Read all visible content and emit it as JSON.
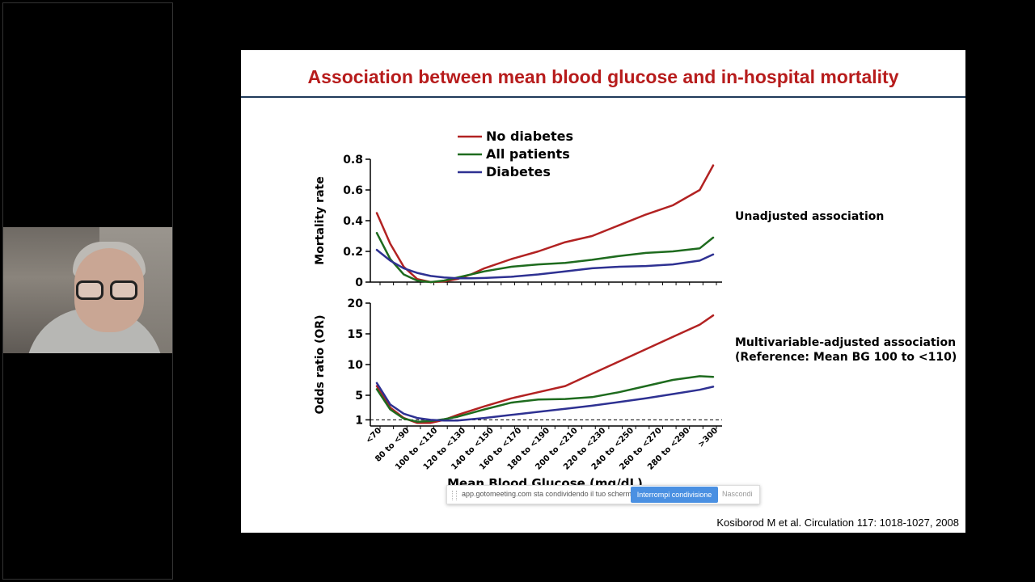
{
  "slide": {
    "title": "Association between mean blood glucose and in-hospital mortality",
    "citation": "Kosiborod M et al. Circulation 117: 1018-1027, 2008"
  },
  "screen_share": {
    "message": "app.gotomeeting.com sta condividendo il tuo schermo.",
    "stop_button": "Interrompi condivisione",
    "hide_link": "Nascondi"
  },
  "colors": {
    "no_diabetes": "#b22222",
    "all_patients": "#1e6b1e",
    "diabetes": "#2e3192",
    "title": "#b71c1c"
  },
  "chart_data": [
    {
      "type": "line",
      "panel_label": "Unadjusted association",
      "ylabel": "Mortality rate",
      "ylim": [
        0,
        0.8
      ],
      "yticks": [
        "0",
        "0.2",
        "0.4",
        "0.6",
        "0.8"
      ],
      "ytick_values": [
        0,
        0.2,
        0.4,
        0.6,
        0.8
      ],
      "legend": [
        "No diabetes",
        "All patients",
        "Diabetes"
      ],
      "series": [
        {
          "name": "No diabetes",
          "x": [
            0,
            0.5,
            1,
            1.5,
            2,
            2.5,
            3,
            3.5,
            4,
            5,
            6,
            7,
            8,
            9,
            10,
            11,
            12,
            12.5
          ],
          "values": [
            0.45,
            0.25,
            0.1,
            0.02,
            0.0,
            0.005,
            0.02,
            0.05,
            0.09,
            0.15,
            0.2,
            0.26,
            0.3,
            0.37,
            0.44,
            0.5,
            0.6,
            0.76
          ]
        },
        {
          "name": "All patients",
          "x": [
            0,
            0.5,
            1,
            1.5,
            2,
            2.5,
            3,
            3.5,
            4,
            5,
            6,
            7,
            8,
            9,
            10,
            11,
            12,
            12.5
          ],
          "values": [
            0.32,
            0.15,
            0.05,
            0.01,
            0.0,
            0.01,
            0.03,
            0.05,
            0.07,
            0.1,
            0.115,
            0.125,
            0.145,
            0.17,
            0.19,
            0.2,
            0.22,
            0.29
          ]
        },
        {
          "name": "Diabetes",
          "x": [
            0,
            0.5,
            1,
            1.5,
            2,
            2.5,
            3,
            3.5,
            4,
            5,
            6,
            7,
            8,
            9,
            10,
            11,
            12,
            12.5
          ],
          "values": [
            0.21,
            0.14,
            0.09,
            0.06,
            0.04,
            0.03,
            0.025,
            0.025,
            0.027,
            0.035,
            0.05,
            0.07,
            0.09,
            0.1,
            0.105,
            0.115,
            0.14,
            0.18
          ]
        }
      ]
    },
    {
      "type": "line",
      "panel_label": "Multivariable-adjusted association",
      "panel_label2": "(Reference: Mean BG 100 to <110)",
      "ylabel": "Odds ratio (OR)",
      "xlabel": "Mean Blood Glucose (mg/dL)",
      "ylim": [
        0,
        20
      ],
      "yticks": [
        "1",
        "5",
        "10",
        "15",
        "20"
      ],
      "ytick_values": [
        1,
        5,
        10,
        15,
        20
      ],
      "reference_line": 1,
      "categories": [
        "<70",
        "80 to <90",
        "100 to <110",
        "120 to <130",
        "140 to <150",
        "160 to <170",
        "180 to <190",
        "200 to <210",
        "220 to <230",
        "240 to <250",
        "260 to <270",
        "280 to <290",
        ">300"
      ],
      "series": [
        {
          "name": "No diabetes",
          "x": [
            0,
            0.5,
            1,
            1.5,
            2,
            2.5,
            3,
            4,
            5,
            6,
            7,
            8,
            9,
            10,
            11,
            12,
            12.5
          ],
          "values": [
            6.5,
            3.0,
            1.3,
            0.5,
            0.5,
            1.0,
            1.8,
            3.2,
            4.5,
            5.5,
            6.5,
            8.5,
            10.5,
            12.5,
            14.5,
            16.5,
            18
          ]
        },
        {
          "name": "All patients",
          "x": [
            0,
            0.5,
            1,
            1.5,
            2,
            2.5,
            3,
            4,
            5,
            6,
            7,
            8,
            9,
            10,
            11,
            12,
            12.5
          ],
          "values": [
            6.0,
            2.7,
            1.2,
            0.7,
            0.8,
            1.1,
            1.5,
            2.7,
            3.8,
            4.3,
            4.4,
            4.7,
            5.5,
            6.5,
            7.5,
            8.1,
            8.0
          ]
        },
        {
          "name": "Diabetes",
          "x": [
            0,
            0.5,
            1,
            1.5,
            2,
            2.5,
            3,
            4,
            5,
            6,
            7,
            8,
            9,
            10,
            11,
            12,
            12.5
          ],
          "values": [
            7.0,
            3.5,
            2.0,
            1.3,
            1.0,
            0.9,
            0.9,
            1.3,
            1.8,
            2.3,
            2.8,
            3.3,
            3.9,
            4.5,
            5.2,
            5.9,
            6.4
          ]
        }
      ]
    }
  ]
}
